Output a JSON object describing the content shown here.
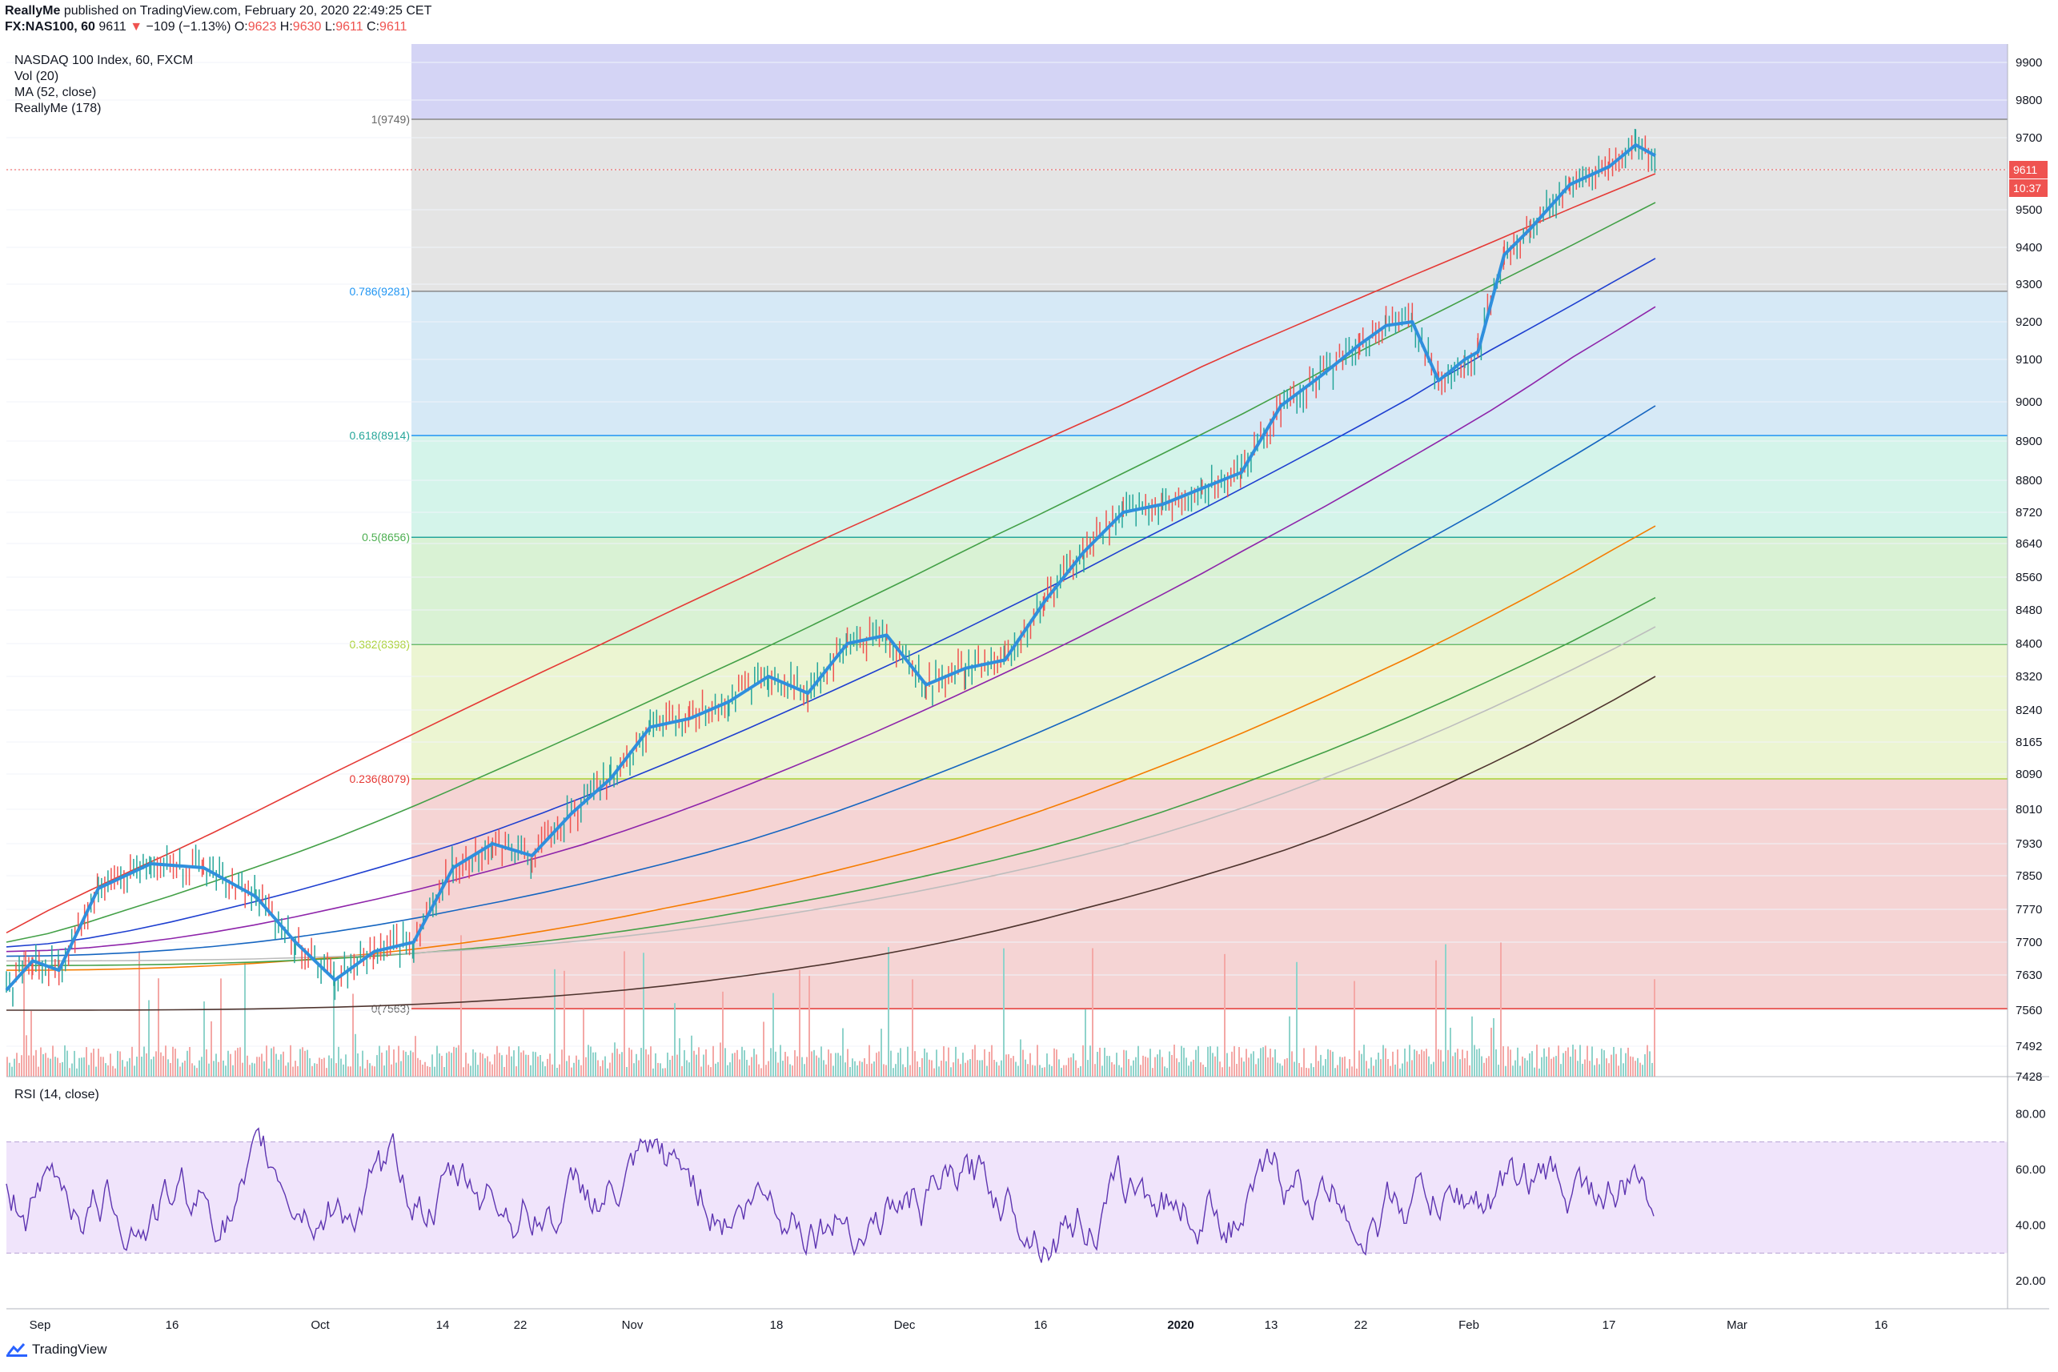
{
  "header": {
    "author": "ReallyMe",
    "published": "published on TradingView.com, February 20, 2020 22:49:25 CET",
    "symbol": "FX:NAS100, 60",
    "last": "9611",
    "change_arrow": "▼",
    "change": "−109 (−1.13%)",
    "o_label": "O:",
    "o_value": "9623",
    "h_label": "H:",
    "h_value": "9630",
    "l_label": "L:",
    "l_value": "9611",
    "c_label": "C:",
    "c_value": "9611"
  },
  "legend": {
    "title": "NASDAQ 100 Index, 60, FXCM",
    "vol": "Vol (20)",
    "ma": "MA (52, close)",
    "custom": "ReallyMe (178)"
  },
  "rsi_legend": "RSI (14, close)",
  "footer": {
    "brand": "TradingView"
  },
  "colors": {
    "price_line": "#2f8fdd",
    "up": "#26a69a",
    "down": "#ef5350",
    "rsi": "#5e35b1",
    "rsi_band": "#f0e4fb"
  },
  "chart_data": [
    {
      "type": "line",
      "title": "NASDAQ 100 Index, 60, FXCM",
      "y_axis_ticks": [
        9900,
        9800,
        9700,
        9611,
        9500,
        9400,
        9300,
        9200,
        9100,
        9000,
        8900,
        8800,
        8720,
        8640,
        8560,
        8480,
        8400,
        8320,
        8240,
        8165,
        8090,
        8010,
        7930,
        7850,
        7770,
        7700,
        7630,
        7560,
        7492,
        7428
      ],
      "x_axis_ticks": [
        "Sep",
        "16",
        "Oct",
        "14",
        "22",
        "Nov",
        "18",
        "Dec",
        "16",
        "2020",
        "13",
        "22",
        "Feb",
        "17",
        "Mar",
        "16"
      ],
      "last_price": 9611,
      "countdown": "10:37",
      "fibonacci": [
        {
          "ratio": "1",
          "label": "1(9749)",
          "price": 9749
        },
        {
          "ratio": "0.786",
          "label": "0.786(9281)",
          "price": 9281
        },
        {
          "ratio": "0.618",
          "label": "0.618(8914)",
          "price": 8914
        },
        {
          "ratio": "0.5",
          "label": "0.5(8656)",
          "price": 8656
        },
        {
          "ratio": "0.382",
          "label": "0.382(8398)",
          "price": 8398
        },
        {
          "ratio": "0.236",
          "label": "0.236(8079)",
          "price": 8079
        },
        {
          "ratio": "0",
          "label": "0(7563)",
          "price": 7563
        }
      ],
      "price_series": {
        "x_index": [
          0,
          20,
          40,
          70,
          110,
          150,
          190,
          220,
          250,
          280,
          310,
          340,
          370,
          400,
          430,
          460,
          490,
          520,
          550,
          580,
          610,
          640,
          670,
          700,
          730,
          760,
          790,
          820,
          850,
          880,
          910,
          940,
          970,
          1000,
          1030,
          1050,
          1070,
          1090,
          1110,
          1120,
          1140,
          1160,
          1190,
          1220,
          1240,
          1255
        ],
        "values": [
          7600,
          7660,
          7640,
          7820,
          7880,
          7870,
          7800,
          7700,
          7620,
          7680,
          7700,
          7870,
          7930,
          7900,
          8000,
          8080,
          8200,
          8220,
          8260,
          8320,
          8280,
          8400,
          8420,
          8300,
          8340,
          8360,
          8500,
          8620,
          8720,
          8740,
          8780,
          8820,
          8990,
          9060,
          9140,
          9190,
          9200,
          9050,
          9100,
          9120,
          9380,
          9450,
          9570,
          9620,
          9680,
          9650
        ]
      },
      "moving_averages": [
        {
          "color": "#e53935",
          "end": 9600
        },
        {
          "color": "#43a047",
          "end": 9520
        },
        {
          "color": "#1e3fd0",
          "end": 9370
        },
        {
          "color": "#8e24aa",
          "end": 9240
        },
        {
          "color": "#1565c0",
          "end": 8990
        },
        {
          "color": "#f57c00",
          "end": 8685
        },
        {
          "color": "#43a047",
          "end": 8510
        },
        {
          "color": "#bdbdbd",
          "end": 8440
        },
        {
          "color": "#4e342e",
          "end": 8320
        }
      ]
    },
    {
      "type": "line",
      "title": "RSI (14, close)",
      "y_axis_ticks": [
        80.0,
        60.0,
        40.0,
        20.0
      ],
      "band": [
        30,
        70
      ],
      "ylim": [
        10,
        92
      ]
    }
  ]
}
